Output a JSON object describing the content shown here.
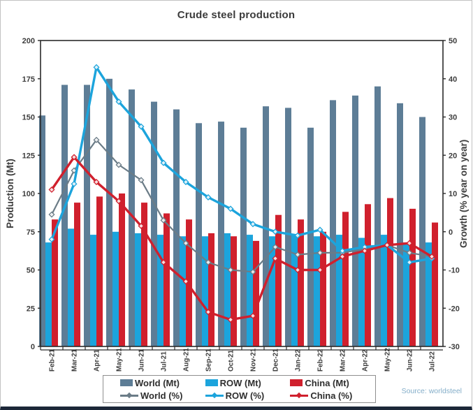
{
  "title": "Crude steel production",
  "source_note": "Source: worldsteel",
  "axes": {
    "left_label": "Production (Mt)",
    "right_label": "Growth (% year on year)",
    "left_ticks": [
      0,
      25,
      50,
      75,
      100,
      125,
      150,
      175,
      200
    ],
    "right_ticks": [
      -30,
      -20,
      -10,
      0,
      10,
      20,
      30,
      40,
      50
    ],
    "left_range": [
      0,
      200
    ],
    "right_range": [
      -30,
      50
    ]
  },
  "chart_data": {
    "type": "bar+line combo",
    "grid": false,
    "legend_position": "bottom",
    "categories": [
      "Feb-21",
      "Mar-21",
      "Apr-21",
      "May-21",
      "Jun-21",
      "Jul-21",
      "Aug-21",
      "Sep-21",
      "Oct-21",
      "Nov-21",
      "Dec-21",
      "Jan-22",
      "Feb-22",
      "Mar-22",
      "Apr-22",
      "May-22",
      "Jun-22",
      "Jul-22"
    ],
    "bar_series": [
      {
        "name": "World (Mt)",
        "axis": "left",
        "color": "#5d7d96",
        "values": [
          151,
          171,
          171,
          175,
          168,
          160,
          155,
          146,
          147,
          143,
          157,
          156,
          143,
          161,
          164,
          170,
          159,
          150
        ]
      },
      {
        "name": "ROW (Mt)",
        "axis": "left",
        "color": "#1ca4dc",
        "values": [
          68,
          77,
          73,
          75,
          74,
          73,
          72,
          72,
          74,
          73,
          72,
          73,
          72,
          73,
          71,
          73,
          68,
          68
        ]
      },
      {
        "name": "China (Mt)",
        "axis": "left",
        "color": "#d0202d",
        "values": [
          83,
          94,
          98,
          100,
          94,
          87,
          83,
          74,
          72,
          69,
          86,
          83,
          75,
          88,
          93,
          97,
          90,
          81
        ]
      }
    ],
    "line_series": [
      {
        "name": "World (%)",
        "axis": "right",
        "color": "#6b7c87",
        "values": [
          4.5,
          16,
          24,
          17.5,
          13.5,
          3,
          -3,
          -8,
          -10,
          -10.5,
          -4,
          -6,
          -5.5,
          -5.5,
          -4.5,
          -3.5,
          -5.5,
          -6.5
        ]
      },
      {
        "name": "ROW (%)",
        "axis": "right",
        "color": "#1ca4dc",
        "values": [
          -2,
          12.5,
          43,
          34,
          27.5,
          18,
          13,
          9,
          6,
          2,
          0,
          -1,
          0.5,
          -5,
          -4,
          -3.5,
          -8,
          -7
        ]
      },
      {
        "name": "China (%)",
        "axis": "right",
        "color": "#d0202d",
        "values": [
          11,
          19.5,
          13,
          8,
          1.5,
          -8,
          -13,
          -21,
          -23,
          -22,
          -7,
          -10,
          -10,
          -6.5,
          -5,
          -3.5,
          -3,
          -6.5
        ]
      }
    ]
  },
  "legend": {
    "items": [
      {
        "label": "World (Mt)",
        "swatch": "bar:0"
      },
      {
        "label": "ROW (Mt)",
        "swatch": "bar:1"
      },
      {
        "label": "China (Mt)",
        "swatch": "bar:2"
      },
      {
        "label": "World (%)",
        "swatch": "line:0"
      },
      {
        "label": "ROW (%)",
        "swatch": "line:1"
      },
      {
        "label": "China (%)",
        "swatch": "line:2"
      }
    ]
  }
}
